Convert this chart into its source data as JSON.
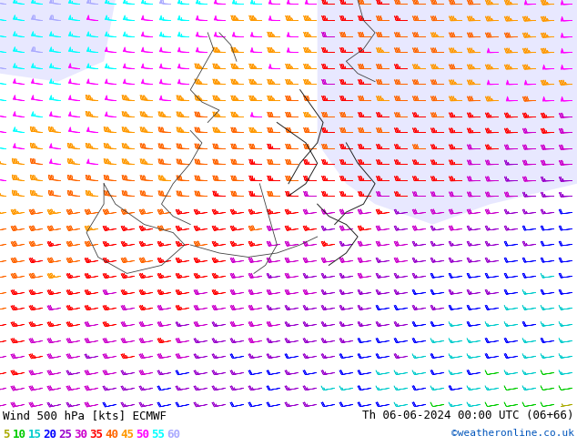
{
  "title_left": "Wind 500 hPa [kts] ECMWF",
  "title_right": "Th 06-06-2024 00:00 UTC (06+66)",
  "credit": "©weatheronline.co.uk",
  "legend_values": [
    5,
    10,
    15,
    20,
    25,
    30,
    35,
    40,
    45,
    50,
    55,
    60
  ],
  "legend_colors": [
    "#aaaa00",
    "#00cc00",
    "#00cccc",
    "#0000ff",
    "#9900cc",
    "#cc00cc",
    "#ff0000",
    "#ff6600",
    "#ff9900",
    "#ff00ff",
    "#00ffff",
    "#aaaaff"
  ],
  "bg_color": "#ffffff",
  "map_land_color": "#ccffaa",
  "map_sea_color": "#e8e8ff",
  "fig_width": 6.34,
  "fig_height": 4.9,
  "dpi": 100,
  "title_fontsize": 9,
  "credit_fontsize": 8,
  "legend_fontsize": 9
}
